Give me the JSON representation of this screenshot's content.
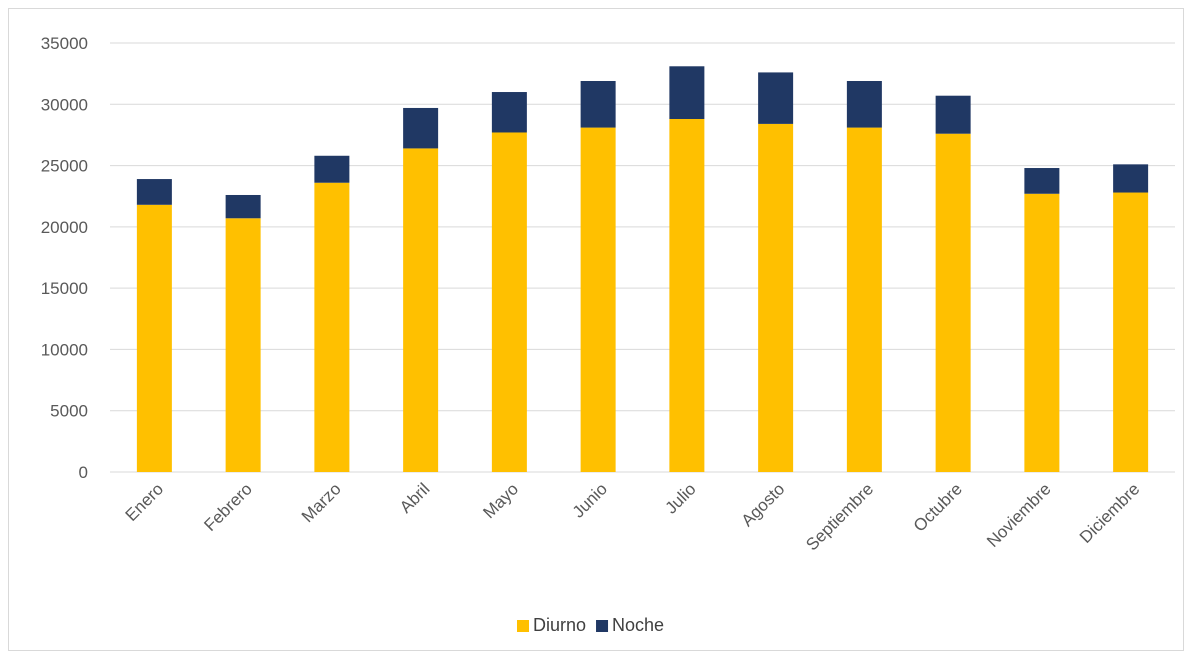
{
  "chart_data": {
    "type": "bar",
    "stacked": true,
    "title": "",
    "xlabel": "",
    "ylabel": "",
    "categories": [
      "Enero",
      "Febrero",
      "Marzo",
      "Abril",
      "Mayo",
      "Junio",
      "Julio",
      "Agosto",
      "Septiembre",
      "Octubre",
      "Noviembre",
      "Diciembre"
    ],
    "series": [
      {
        "name": "Diurno",
        "color": "#FFC000",
        "values": [
          21800,
          20700,
          23600,
          26400,
          27700,
          28100,
          28800,
          28400,
          28100,
          27600,
          22700,
          22800
        ]
      },
      {
        "name": "Noche",
        "color": "#203864",
        "values": [
          2100,
          1900,
          2200,
          3300,
          3300,
          3800,
          4300,
          4200,
          3800,
          3100,
          2100,
          2300
        ]
      }
    ],
    "ylim": [
      0,
      35000
    ],
    "yticks": [
      0,
      5000,
      10000,
      15000,
      20000,
      25000,
      30000,
      35000
    ],
    "grid": true,
    "legend_position": "bottom"
  }
}
